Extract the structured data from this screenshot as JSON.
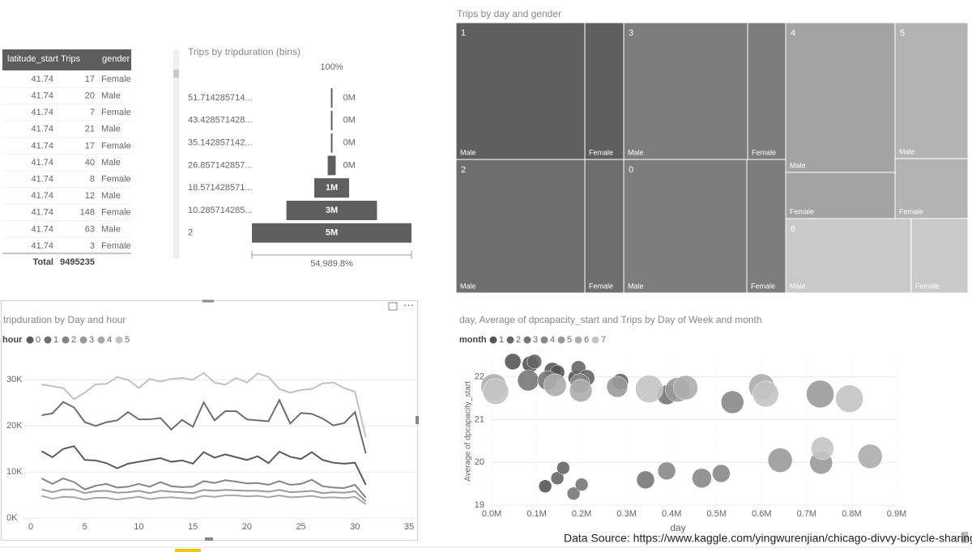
{
  "table": {
    "headers": [
      "latitude_start",
      "Trips",
      "gender"
    ],
    "rows": [
      [
        41.74,
        17,
        "Female"
      ],
      [
        41.74,
        20,
        "Male"
      ],
      [
        41.74,
        7,
        "Female"
      ],
      [
        41.74,
        21,
        "Male"
      ],
      [
        41.74,
        17,
        "Female"
      ],
      [
        41.74,
        40,
        "Male"
      ],
      [
        41.74,
        8,
        "Female"
      ],
      [
        41.74,
        12,
        "Male"
      ],
      [
        41.74,
        148,
        "Female"
      ],
      [
        41.74,
        63,
        "Male"
      ],
      [
        41.74,
        3,
        "Female"
      ]
    ],
    "total_label": "Total",
    "total": 9495235
  },
  "chart_data": [
    {
      "type": "funnel",
      "title": "Trips by tripduration (bins)",
      "categories": [
        "51.714285714...",
        "43.428571428...",
        "35.142857142...",
        "26.857142857...",
        "18.571428571...",
        "10.285714285...",
        "2"
      ],
      "values": [
        0.05,
        0.05,
        0.05,
        0.25,
        1.09,
        2.84,
        5
      ],
      "value_labels": [
        "0M",
        "0M",
        "0M",
        "0M",
        "1M",
        "3M",
        "5M"
      ],
      "top_label": "100%",
      "bottom_label": "54,989.8%",
      "color": "#5f5f5f"
    },
    {
      "type": "treemap",
      "title": "Trips by day and gender",
      "categories": [
        "Male",
        "Female"
      ],
      "series": [
        {
          "name": "1",
          "color": "#5f5f5f",
          "values": [
            1209000,
            365000
          ]
        },
        {
          "name": "3",
          "color": "#7d7d7d",
          "values": [
            1163000,
            357000
          ]
        },
        {
          "name": "2",
          "color": "#6e6e6e",
          "values": [
            1180000,
            356000
          ]
        },
        {
          "name": "0",
          "color": "#7d7d7d",
          "values": [
            1128000,
            356000
          ]
        },
        {
          "name": "4",
          "color": "#a3a3a3",
          "values": [
            1123000,
            346000
          ]
        },
        {
          "name": "5",
          "color": "#b3b3b3",
          "values": [
            680000,
            300000
          ]
        },
        {
          "name": "6",
          "color": "#c9c9c9",
          "values": [
            641000,
            290000
          ]
        }
      ]
    },
    {
      "type": "line",
      "title": "tripduration by Day and hour",
      "legend_title": "hour",
      "x": [
        1,
        2,
        3,
        4,
        5,
        6,
        7,
        8,
        9,
        10,
        11,
        12,
        13,
        14,
        15,
        16,
        17,
        18,
        19,
        20,
        21,
        22,
        23,
        24,
        25,
        26,
        27,
        28,
        29,
        30,
        31
      ],
      "xlim": [
        0,
        35
      ],
      "xticks": [
        0,
        5,
        10,
        15,
        20,
        25,
        30,
        35
      ],
      "ylim": [
        0,
        32500
      ],
      "yticks": [
        {
          "value": 0,
          "label": "0K"
        },
        {
          "value": 10000,
          "label": "10K"
        },
        {
          "value": 20000,
          "label": "20K"
        },
        {
          "value": 30000,
          "label": "30K"
        }
      ],
      "grid": true,
      "series": [
        {
          "name": "0",
          "color": "#5a5a5a",
          "values": [
            14500,
            13200,
            15000,
            15600,
            12600,
            12500,
            11900,
            10800,
            11800,
            12200,
            12600,
            13000,
            12200,
            12500,
            11800,
            14300,
            13100,
            13800,
            13200,
            12600,
            13400,
            11900,
            14400,
            13300,
            12800,
            14300,
            12600,
            12000,
            11800,
            12000,
            7200
          ]
        },
        {
          "name": "1",
          "color": "#6e6e6e",
          "values": [
            22300,
            22700,
            25200,
            24000,
            20800,
            20000,
            20800,
            21200,
            23000,
            21400,
            21400,
            21700,
            19200,
            21300,
            19800,
            25100,
            21200,
            23200,
            23200,
            21400,
            21200,
            21000,
            25600,
            20500,
            22800,
            22600,
            21600,
            20100,
            20600,
            23000,
            14000
          ]
        },
        {
          "name": "2",
          "color": "#858585",
          "values": [
            8600,
            7400,
            8600,
            7800,
            6200,
            7000,
            7400,
            6600,
            6800,
            7400,
            6800,
            7800,
            6900,
            6700,
            6800,
            8000,
            7600,
            8200,
            7900,
            7500,
            7600,
            7200,
            8000,
            7200,
            7400,
            8300,
            6900,
            6600,
            6500,
            7200,
            4400
          ]
        },
        {
          "name": "3",
          "color": "#999999",
          "values": [
            6200,
            5600,
            6200,
            6200,
            5400,
            5800,
            5900,
            5500,
            5600,
            5900,
            5400,
            5900,
            5700,
            5600,
            5400,
            6100,
            5900,
            6100,
            6000,
            5900,
            5900,
            5700,
            6100,
            5600,
            5700,
            5900,
            5400,
            5600,
            5500,
            5800,
            3600
          ]
        },
        {
          "name": "4",
          "color": "#a8a8a8",
          "values": [
            4800,
            4200,
            4600,
            4500,
            4000,
            4400,
            4400,
            4000,
            4300,
            4600,
            4100,
            4400,
            4500,
            4300,
            4200,
            4800,
            4600,
            4900,
            4900,
            4700,
            4800,
            4500,
            4900,
            4500,
            4600,
            4800,
            4400,
            4500,
            4300,
            4600,
            3000
          ]
        },
        {
          "name": "5",
          "color": "#c2c2c2",
          "values": [
            29000,
            28600,
            28200,
            25800,
            27200,
            29000,
            29100,
            30600,
            30000,
            28200,
            30200,
            29600,
            30200,
            30400,
            30000,
            31500,
            29400,
            28900,
            30400,
            29400,
            31400,
            30600,
            28000,
            27200,
            27800,
            28000,
            29200,
            29400,
            28200,
            27400,
            17500
          ]
        }
      ]
    },
    {
      "type": "scatter",
      "title": "day, Average of dpcapacity_start and Trips by Day of Week and month",
      "legend_title": "month",
      "xlabel": "day",
      "ylabel": "Average of dpcapacity_start",
      "xlim": [
        0,
        900000
      ],
      "xticks": [
        {
          "value": 0,
          "label": "0.0M"
        },
        {
          "value": 100000,
          "label": "0.1M"
        },
        {
          "value": 200000,
          "label": "0.2M"
        },
        {
          "value": 300000,
          "label": "0.3M"
        },
        {
          "value": 400000,
          "label": "0.4M"
        },
        {
          "value": 500000,
          "label": "0.5M"
        },
        {
          "value": 600000,
          "label": "0.6M"
        },
        {
          "value": 700000,
          "label": "0.7M"
        },
        {
          "value": 800000,
          "label": "0.8M"
        },
        {
          "value": 900000,
          "label": "0.9M"
        }
      ],
      "ylim": [
        19,
        22.45
      ],
      "yticks": [
        19,
        20,
        21,
        22
      ],
      "grid": true,
      "series": [
        {
          "name": "1",
          "color": "#555555",
          "x": [
            47000,
            86000,
            135000,
            146000,
            186000,
            119000
          ],
          "y": [
            22.36,
            22.3,
            22.15,
            22.11,
            21.98,
            19.44
          ],
          "size": [
            115000,
            115000,
            115000,
            93000,
            93000,
            74000
          ]
        },
        {
          "name": "2",
          "color": "#666666",
          "x": [
            95000,
            193000,
            211000,
            286000,
            146000,
            159000
          ],
          "y": [
            22.36,
            22.21,
            21.98,
            21.89,
            19.63,
            19.87
          ],
          "size": [
            93000,
            93000,
            115000,
            115000,
            74000,
            74000
          ]
        },
        {
          "name": "3",
          "color": "#777777",
          "x": [
            81000,
            124000,
            389000,
            182000,
            200000,
            342000
          ],
          "y": [
            21.92,
            21.92,
            21.58,
            19.27,
            19.48,
            19.59
          ],
          "size": [
            194000,
            166000,
            166000,
            74000,
            74000,
            139000
          ]
        },
        {
          "name": "4",
          "color": "#888888",
          "x": [
            535000,
            389000,
            467000,
            510000,
            196000
          ],
          "y": [
            21.41,
            19.8,
            19.63,
            19.74,
            21.85
          ],
          "size": [
            225000,
            139000,
            166000,
            139000,
            166000
          ]
        },
        {
          "name": "5",
          "color": "#9a9a9a",
          "x": [
            279000,
            413000,
            730000,
            732000,
            641000
          ],
          "y": [
            21.77,
            21.7,
            21.6,
            19.99,
            20.05
          ],
          "size": [
            194000,
            259000,
            332000,
            225000,
            259000
          ]
        },
        {
          "name": "6",
          "color": "#adadad",
          "x": [
            5000,
            141000,
            198000,
            431000,
            600000,
            841000
          ],
          "y": [
            21.77,
            21.81,
            21.68,
            21.75,
            21.77,
            20.14
          ],
          "size": [
            294000,
            225000,
            225000,
            259000,
            294000,
            259000
          ]
        },
        {
          "name": "7",
          "color": "#c4c4c4",
          "x": [
            9000,
            350000,
            609000,
            795000,
            735000
          ],
          "y": [
            21.66,
            21.72,
            21.6,
            21.49,
            20.33
          ],
          "size": [
            294000,
            332000,
            294000,
            332000,
            225000
          ]
        }
      ]
    }
  ],
  "footer": "Data Source: https://www.kaggle.com/yingwurenjian/chicago-divvy-bicycle-sharing-data"
}
